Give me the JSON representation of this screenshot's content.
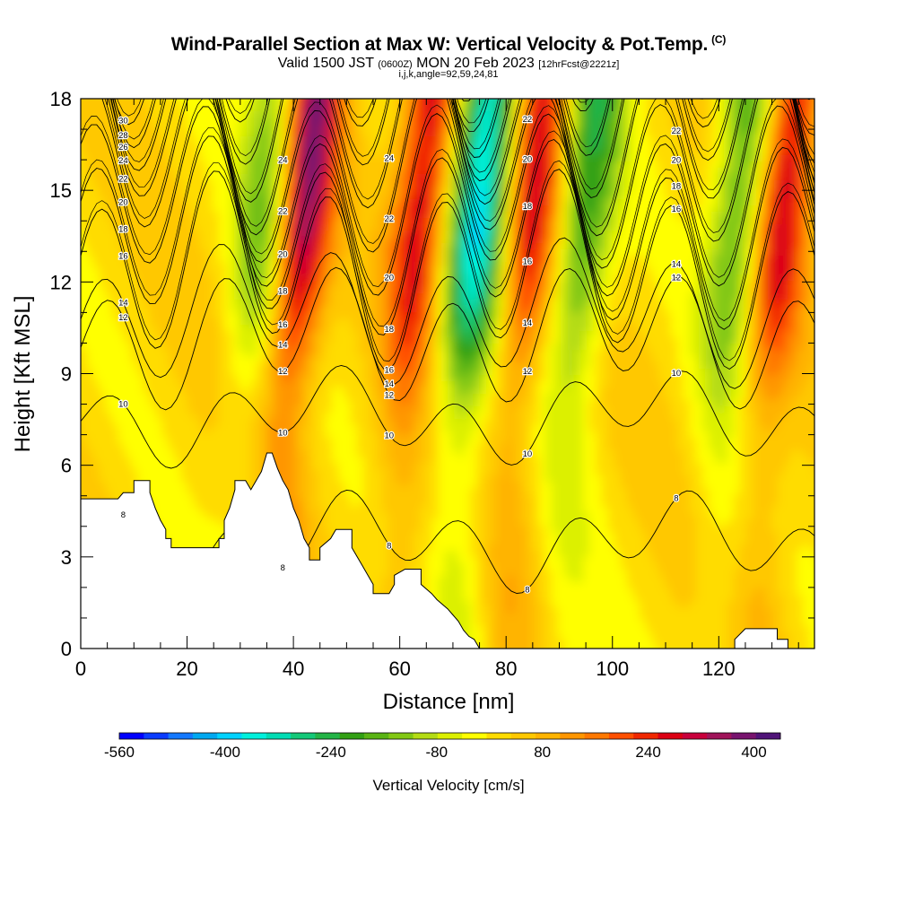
{
  "header": {
    "title": "Wind-Parallel Section at Max W: Vertical Velocity & Pot.Temp.",
    "title_tag": "(C)",
    "valid_a": "Valid 1500 JST",
    "valid_b": "(0600Z)",
    "valid_c": "MON 20 Feb 2023",
    "valid_d": "[12hrFcst@2221z]",
    "subtitle": "i,j,k,angle=92,59,24,81"
  },
  "chart_data": {
    "type": "heatmap",
    "xlabel": "Distance [nm]",
    "ylabel": "Height [Kft MSL]",
    "xlim": [
      0,
      138
    ],
    "ylim": [
      0,
      18
    ],
    "x_ticks": [
      0,
      20,
      40,
      60,
      80,
      100,
      120
    ],
    "y_ticks": [
      0,
      3,
      6,
      9,
      12,
      15,
      18
    ],
    "colorbar": {
      "label": "Vertical Velocity [cm/s]",
      "min": -560,
      "max": 440,
      "step": 40,
      "tick_labels": [
        "-560",
        "-400",
        "-240",
        "-80",
        "80",
        "240",
        "400"
      ],
      "tick_values": [
        -560,
        -400,
        -240,
        -80,
        80,
        240,
        400
      ],
      "colors": [
        "#0000ff",
        "#0a3cff",
        "#1478ff",
        "#00a8f0",
        "#00d2ff",
        "#00f0dc",
        "#00dcb4",
        "#14c878",
        "#23b446",
        "#32a014",
        "#5ab414",
        "#82c814",
        "#b4dc14",
        "#dcf000",
        "#ffff00",
        "#ffdc00",
        "#ffc800",
        "#ffb400",
        "#ff9600",
        "#ff7800",
        "#ff5000",
        "#f02800",
        "#dc0014",
        "#c8003c",
        "#a0145a",
        "#78146e",
        "#501478"
      ]
    },
    "theta_contours": {
      "units": "C",
      "levels": [
        8,
        10,
        12,
        14,
        16,
        18,
        20,
        22,
        24,
        26,
        28,
        30,
        32
      ],
      "labels_shown": [
        "32",
        "30",
        "28",
        "26",
        "24",
        "22",
        "20",
        "18",
        "16",
        "14",
        "12",
        "10",
        "8"
      ]
    },
    "vertical_velocity_cores": [
      {
        "x_nm": 45,
        "w_cms": 400
      },
      {
        "x_nm": 67,
        "w_cms": 300
      },
      {
        "x_nm": 88,
        "w_cms": 280
      },
      {
        "x_nm": 135,
        "w_cms": 300
      },
      {
        "x_nm": 38,
        "w_cms": -200
      },
      {
        "x_nm": 78,
        "w_cms": -440
      },
      {
        "x_nm": 98,
        "w_cms": -260
      },
      {
        "x_nm": 127,
        "w_cms": -240
      }
    ],
    "terrain_kft": [
      [
        0,
        4.9
      ],
      [
        7,
        4.9
      ],
      [
        8,
        5.1
      ],
      [
        10,
        5.1
      ],
      [
        10,
        5.5
      ],
      [
        13,
        5.5
      ],
      [
        13,
        5.1
      ],
      [
        14,
        4.6
      ],
      [
        15,
        4.2
      ],
      [
        16,
        3.9
      ],
      [
        16,
        3.6
      ],
      [
        17,
        3.6
      ],
      [
        17,
        3.3
      ],
      [
        26,
        3.3
      ],
      [
        26,
        3.6
      ],
      [
        27,
        3.6
      ],
      [
        27,
        4.2
      ],
      [
        28,
        4.6
      ],
      [
        29,
        5.2
      ],
      [
        29,
        5.5
      ],
      [
        31,
        5.5
      ],
      [
        32,
        5.2
      ],
      [
        33,
        5.5
      ],
      [
        34,
        5.8
      ],
      [
        35,
        6.4
      ],
      [
        36,
        6.4
      ],
      [
        37,
        5.9
      ],
      [
        38,
        5.5
      ],
      [
        39,
        5.2
      ],
      [
        40,
        4.6
      ],
      [
        41,
        4.2
      ],
      [
        42,
        3.6
      ],
      [
        43,
        3.3
      ],
      [
        43,
        2.9
      ],
      [
        45,
        2.9
      ],
      [
        45,
        3.3
      ],
      [
        47,
        3.6
      ],
      [
        48,
        3.9
      ],
      [
        51,
        3.9
      ],
      [
        51,
        3.3
      ],
      [
        52,
        3.0
      ],
      [
        53,
        2.7
      ],
      [
        54,
        2.4
      ],
      [
        55,
        2.1
      ],
      [
        55,
        1.8
      ],
      [
        58,
        1.8
      ],
      [
        59,
        2.1
      ],
      [
        59,
        2.4
      ],
      [
        61,
        2.6
      ],
      [
        64,
        2.6
      ],
      [
        64,
        2.1
      ],
      [
        66,
        1.8
      ],
      [
        67,
        1.6
      ],
      [
        69,
        1.3
      ],
      [
        70,
        1.1
      ],
      [
        71,
        0.9
      ],
      [
        72,
        0.6
      ],
      [
        73,
        0.4
      ],
      [
        74,
        0.3
      ],
      [
        75,
        0.0
      ],
      [
        123,
        0.0
      ],
      [
        123,
        0.3
      ],
      [
        125,
        0.65
      ],
      [
        131,
        0.65
      ],
      [
        131,
        0.3
      ],
      [
        133,
        0.3
      ],
      [
        133,
        0.0
      ],
      [
        138,
        0.0
      ]
    ]
  }
}
